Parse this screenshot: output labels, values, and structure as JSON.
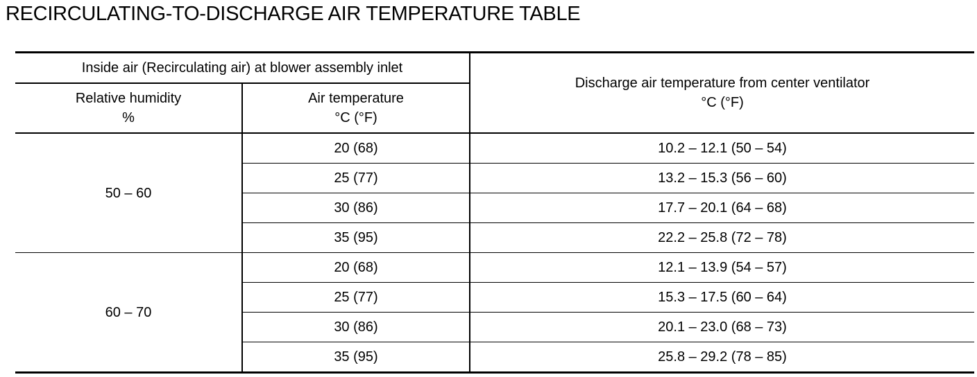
{
  "title": "RECIRCULATING-TO-DISCHARGE AIR TEMPERATURE TABLE",
  "table": {
    "header": {
      "group": "Inside air (Recirculating air) at blower assembly inlet",
      "humidity": [
        "Relative humidity",
        "%"
      ],
      "air_temperature": [
        "Air temperature",
        "°C (°F)"
      ],
      "discharge": [
        "Discharge air temperature from center ventilator",
        "°C (°F)"
      ]
    },
    "groups": [
      {
        "humidity": "50 – 60",
        "rows": [
          [
            "20 (68)",
            "10.2 – 12.1 (50 – 54)"
          ],
          [
            "25 (77)",
            "13.2 – 15.3 (56 – 60)"
          ],
          [
            "30 (86)",
            "17.7 – 20.1 (64 – 68)"
          ],
          [
            "35 (95)",
            "22.2 – 25.8 (72 – 78)"
          ]
        ]
      },
      {
        "humidity": "60 – 70",
        "rows": [
          [
            "20 (68)",
            "12.1 – 13.9 (54 – 57)"
          ],
          [
            "25 (77)",
            "15.3 – 17.5 (60 – 64)"
          ],
          [
            "30 (86)",
            "20.1 – 23.0 (68 – 73)"
          ],
          [
            "35 (95)",
            "25.8 – 29.2 (78 – 85)"
          ]
        ]
      }
    ]
  }
}
